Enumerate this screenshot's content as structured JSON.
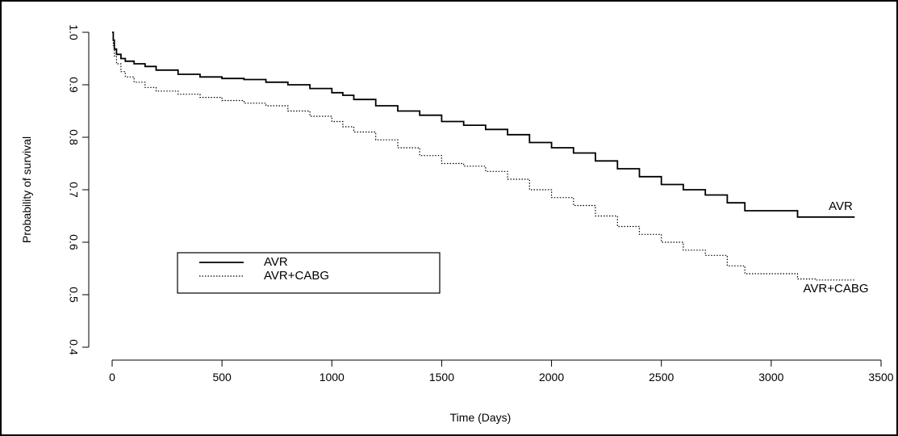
{
  "chart_data": {
    "type": "line",
    "title": "",
    "xlabel": "Time (Days)",
    "ylabel": "Probability of survival",
    "xlim": [
      0,
      3500
    ],
    "ylim": [
      0.4,
      1.0
    ],
    "xticks": [
      "0",
      "500",
      "1000",
      "1500",
      "2000",
      "2500",
      "3000",
      "3500"
    ],
    "yticks": [
      "0.4",
      "0.5",
      "0.6",
      "0.7",
      "0.8",
      "0.9",
      "1.0"
    ],
    "xtick_values": [
      0,
      500,
      1000,
      1500,
      2000,
      2500,
      3000,
      3500
    ],
    "ytick_values": [
      0.4,
      0.5,
      0.6,
      0.7,
      0.8,
      0.9,
      1.0
    ],
    "grid": false,
    "legend_placement": "lower-left",
    "series": [
      {
        "name": "AVR",
        "end_label": "AVR",
        "style": "solid",
        "color": "#000000",
        "x": [
          0,
          5,
          10,
          20,
          40,
          60,
          100,
          150,
          200,
          300,
          400,
          500,
          600,
          700,
          800,
          900,
          1000,
          1050,
          1100,
          1200,
          1300,
          1400,
          1500,
          1600,
          1700,
          1800,
          1900,
          2000,
          2100,
          2200,
          2300,
          2400,
          2500,
          2600,
          2700,
          2800,
          2880,
          3000,
          3120,
          3200,
          3380
        ],
        "y": [
          1.0,
          0.985,
          0.968,
          0.958,
          0.95,
          0.945,
          0.94,
          0.935,
          0.928,
          0.92,
          0.915,
          0.912,
          0.91,
          0.905,
          0.9,
          0.893,
          0.885,
          0.88,
          0.872,
          0.86,
          0.85,
          0.842,
          0.83,
          0.823,
          0.815,
          0.805,
          0.79,
          0.78,
          0.77,
          0.755,
          0.74,
          0.725,
          0.71,
          0.7,
          0.69,
          0.675,
          0.66,
          0.66,
          0.648,
          0.648,
          0.648
        ]
      },
      {
        "name": "AVR+CABG",
        "end_label": "AVR+CABG",
        "style": "dotted",
        "color": "#000000",
        "x": [
          0,
          5,
          10,
          20,
          40,
          60,
          100,
          150,
          200,
          300,
          400,
          500,
          600,
          700,
          800,
          900,
          1000,
          1050,
          1100,
          1200,
          1300,
          1400,
          1500,
          1600,
          1700,
          1800,
          1900,
          2000,
          2100,
          2200,
          2300,
          2400,
          2500,
          2600,
          2700,
          2800,
          2880,
          3000,
          3120,
          3200,
          3380
        ],
        "y": [
          1.0,
          0.975,
          0.955,
          0.94,
          0.925,
          0.915,
          0.905,
          0.895,
          0.888,
          0.882,
          0.876,
          0.87,
          0.865,
          0.86,
          0.85,
          0.84,
          0.83,
          0.82,
          0.81,
          0.795,
          0.78,
          0.765,
          0.75,
          0.745,
          0.735,
          0.72,
          0.7,
          0.685,
          0.67,
          0.65,
          0.63,
          0.615,
          0.6,
          0.585,
          0.575,
          0.555,
          0.54,
          0.54,
          0.53,
          0.528,
          0.528
        ]
      }
    ]
  }
}
